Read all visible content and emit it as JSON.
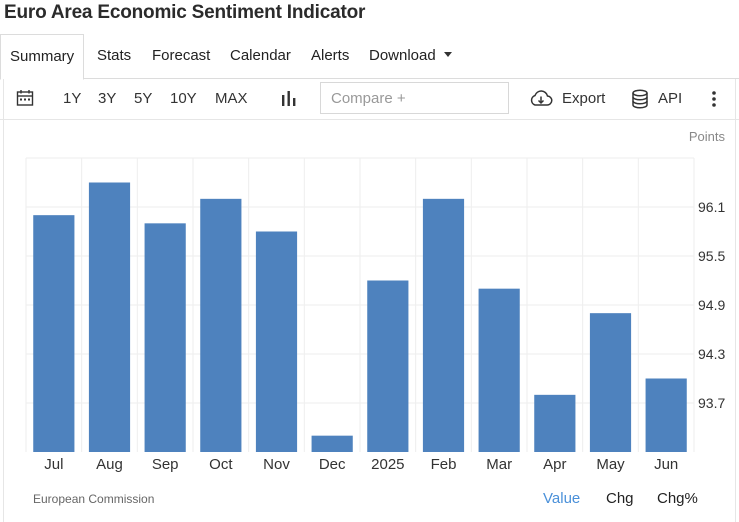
{
  "title": "Euro Area Economic Sentiment Indicator",
  "tabs": [
    {
      "label": "Summary",
      "active": true
    },
    {
      "label": "Stats"
    },
    {
      "label": "Forecast"
    },
    {
      "label": "Calendar"
    },
    {
      "label": "Alerts"
    },
    {
      "label": "Download"
    }
  ],
  "toolbar": {
    "ranges": [
      "1Y",
      "3Y",
      "5Y",
      "10Y",
      "MAX"
    ],
    "compare_placeholder": "Compare +",
    "export_label": "Export",
    "api_label": "API",
    "icons": [
      "calendar-icon",
      "bar-chart-icon",
      "cloud-download-icon",
      "database-icon",
      "more-vertical-icon"
    ]
  },
  "footer": {
    "source": "European Commission",
    "value_tabs": [
      "Value",
      "Chg",
      "Chg%"
    ],
    "active_value_tab": "Value"
  },
  "colors": {
    "bar": "#4e82be",
    "accent": "#4a90d9",
    "grid": "#eeeeee"
  },
  "chart_data": {
    "type": "bar",
    "unit_label": "Points",
    "categories": [
      "Jul",
      "Aug",
      "Sep",
      "Oct",
      "Nov",
      "Dec",
      "2025",
      "Feb",
      "Mar",
      "Apr",
      "May",
      "Jun"
    ],
    "values": [
      96.0,
      96.4,
      95.9,
      96.2,
      95.8,
      93.3,
      95.2,
      96.2,
      95.1,
      93.8,
      94.8,
      94.0
    ],
    "y_ticks": [
      "96.1",
      "95.5",
      "94.9",
      "94.3",
      "93.7"
    ],
    "y_tick_values": [
      96.1,
      95.5,
      94.9,
      94.3,
      93.7
    ],
    "ylim": [
      93.1,
      96.7
    ],
    "grid": true,
    "y_axis_side": "right"
  }
}
